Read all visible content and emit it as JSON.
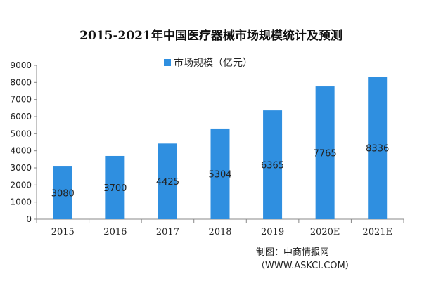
{
  "chart_data": {
    "type": "bar",
    "title": "2015-2021年中国医疗器械市场规模统计及预测",
    "categories": [
      "2015",
      "2016",
      "2017",
      "2018",
      "2019",
      "2020E",
      "2021E"
    ],
    "series": [
      {
        "name": "市场规模（亿元）",
        "values": [
          3080,
          3700,
          4425,
          5304,
          6365,
          7765,
          8336
        ]
      }
    ],
    "value_labels": [
      "3080",
      "3700",
      "4425",
      "5304",
      "6365",
      "7765",
      "8336"
    ],
    "ylim": [
      0,
      9000
    ],
    "yticks": [
      0,
      1000,
      2000,
      3000,
      4000,
      5000,
      6000,
      7000,
      8000,
      9000
    ],
    "ytick_labels": [
      "0",
      "1000",
      "2000",
      "3000",
      "4000",
      "5000",
      "6000",
      "7000",
      "8000",
      "9000"
    ],
    "grid": false,
    "legend_position": "top-center",
    "colors": {
      "bar": "#2f8fe0",
      "text": "#222222"
    }
  },
  "footer": {
    "credit": "制图：中商情报网（WWW.ASKCI.COM）"
  }
}
